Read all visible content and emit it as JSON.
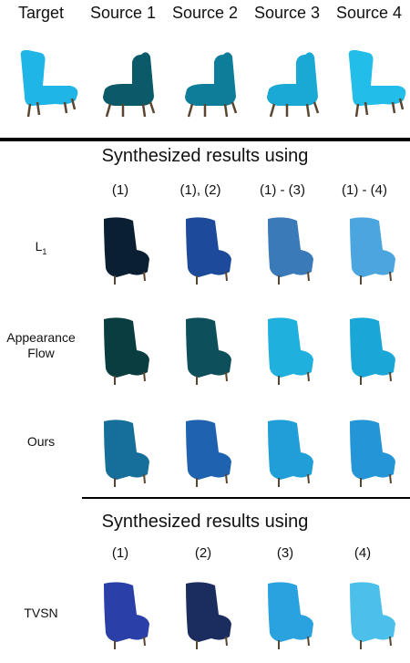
{
  "top_headers": [
    "Target",
    "Source 1",
    "Source 2",
    "Source 3",
    "Source 4"
  ],
  "section1": {
    "title": "Synthesized results using",
    "columns": [
      "(1)",
      "(1), (2)",
      "(1) - (3)",
      "(1) - (4)"
    ],
    "rows": [
      {
        "label_main": "L",
        "label_sub": "1"
      },
      {
        "label_line1": "Appearance",
        "label_line2": "Flow"
      },
      {
        "label": "Ours"
      }
    ]
  },
  "section2": {
    "title": "Synthesized results using",
    "columns": [
      "(1)",
      "(2)",
      "(3)",
      "(4)"
    ],
    "rows": [
      {
        "label": "TVSN"
      }
    ]
  },
  "colors": {
    "chair_bright": "#1fb5e6",
    "chair_dark": "#0a3d4a",
    "chair_navy": "#1d2d66",
    "legs": "#5a4530"
  }
}
